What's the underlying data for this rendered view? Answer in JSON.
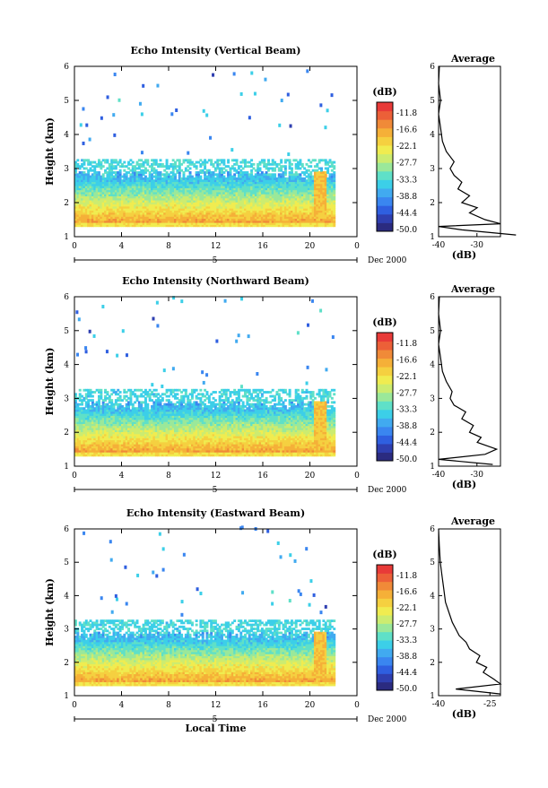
{
  "colors": {
    "scale": [
      "#2b2b80",
      "#2f3fb0",
      "#2f5fe0",
      "#3a86f0",
      "#41aaf0",
      "#3ccfe8",
      "#5fe0c8",
      "#9ae89a",
      "#ccec70",
      "#f0ec50",
      "#f5d040",
      "#f5b038",
      "#f08a38",
      "#ec6038",
      "#e83a38"
    ],
    "line": "#000000",
    "frame": "#000000"
  },
  "shared": {
    "x_ticks": [
      "0",
      "4",
      "8",
      "12",
      "16",
      "20",
      "0"
    ],
    "date_center_label": "5",
    "date_label": "Dec 2000",
    "y_ticks": [
      "1",
      "2",
      "3",
      "4",
      "5",
      "6"
    ],
    "ylabel": "Height (km)",
    "xlabel": "Local Time",
    "cb_title": "(dB)",
    "cb_ticks": [
      "-11.8",
      "-16.6",
      "-22.1",
      "-27.7",
      "-33.3",
      "-38.8",
      "-44.4",
      "-50.0"
    ],
    "avg_title": "Average",
    "avg_xlabel": "(dB)"
  },
  "chart_data": [
    {
      "type": "heatmap",
      "title": "Echo Intensity (Vertical Beam)",
      "xlim": [
        0,
        24
      ],
      "ylim": [
        1,
        6
      ],
      "color_range_db": [
        -50.0,
        -11.8
      ],
      "avg_panel": {
        "type": "line",
        "xlim": [
          -40,
          -24
        ],
        "x_ticks": [
          "-40",
          "-30"
        ],
        "profile": [
          [
            -20,
            1.05
          ],
          [
            -34,
            1.2
          ],
          [
            -40,
            1.3
          ],
          [
            -24,
            1.38
          ],
          [
            -28,
            1.5
          ],
          [
            -32,
            1.7
          ],
          [
            -30,
            1.85
          ],
          [
            -34,
            2.0
          ],
          [
            -32,
            2.2
          ],
          [
            -35,
            2.4
          ],
          [
            -34,
            2.6
          ],
          [
            -36,
            2.8
          ],
          [
            -37,
            3.0
          ],
          [
            -36,
            3.2
          ],
          [
            -38,
            3.5
          ],
          [
            -39,
            3.8
          ],
          [
            -39.5,
            4.2
          ],
          [
            -40,
            4.6
          ],
          [
            -39.5,
            5.0
          ],
          [
            -40,
            5.5
          ],
          [
            -39.8,
            6.0
          ]
        ]
      }
    },
    {
      "type": "heatmap",
      "title": "Echo Intensity (Northward Beam)",
      "xlim": [
        0,
        24
      ],
      "ylim": [
        1,
        6
      ],
      "color_range_db": [
        -50.0,
        -11.8
      ],
      "avg_panel": {
        "type": "line",
        "xlim": [
          -40,
          -24
        ],
        "x_ticks": [
          "-40",
          "-30"
        ],
        "profile": [
          [
            -26,
            1.05
          ],
          [
            -40,
            1.2
          ],
          [
            -28,
            1.35
          ],
          [
            -25,
            1.5
          ],
          [
            -30,
            1.7
          ],
          [
            -29,
            1.85
          ],
          [
            -32,
            2.0
          ],
          [
            -31,
            2.2
          ],
          [
            -34,
            2.4
          ],
          [
            -33,
            2.6
          ],
          [
            -36,
            2.8
          ],
          [
            -37,
            3.0
          ],
          [
            -36.5,
            3.2
          ],
          [
            -38,
            3.5
          ],
          [
            -39,
            3.8
          ],
          [
            -39.5,
            4.2
          ],
          [
            -40,
            4.6
          ],
          [
            -39.5,
            5.0
          ],
          [
            -40,
            5.5
          ],
          [
            -39.8,
            6.0
          ]
        ]
      }
    },
    {
      "type": "heatmap",
      "title": "Echo Intensity (Eastward Beam)",
      "xlim": [
        0,
        24
      ],
      "ylim": [
        1,
        6
      ],
      "color_range_db": [
        -50.0,
        -11.8
      ],
      "avg_panel": {
        "type": "line",
        "xlim": [
          -40,
          -22
        ],
        "x_ticks": [
          "-40",
          "-25"
        ],
        "profile": [
          [
            -22,
            1.05
          ],
          [
            -35,
            1.2
          ],
          [
            -22,
            1.35
          ],
          [
            -24,
            1.5
          ],
          [
            -27,
            1.7
          ],
          [
            -26,
            1.85
          ],
          [
            -29,
            2.0
          ],
          [
            -28,
            2.2
          ],
          [
            -31,
            2.4
          ],
          [
            -32,
            2.6
          ],
          [
            -34,
            2.8
          ],
          [
            -35,
            3.0
          ],
          [
            -36,
            3.2
          ],
          [
            -37,
            3.5
          ],
          [
            -38,
            3.8
          ],
          [
            -38.5,
            4.2
          ],
          [
            -39,
            4.6
          ],
          [
            -39.5,
            5.0
          ],
          [
            -39.8,
            5.5
          ],
          [
            -40,
            6.0
          ]
        ]
      }
    }
  ]
}
